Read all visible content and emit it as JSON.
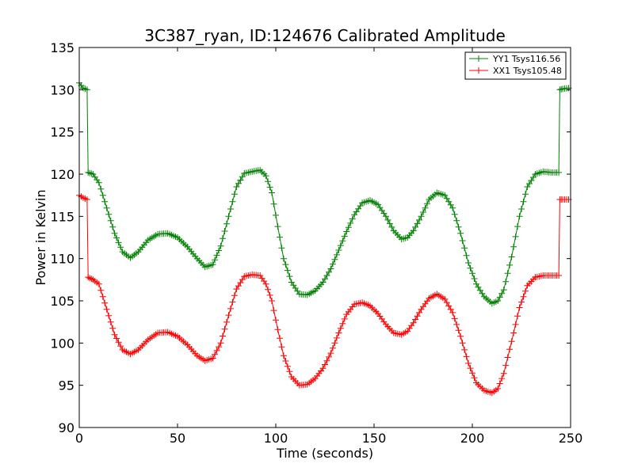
{
  "chart_data": {
    "type": "line",
    "title": "3C387_ryan, ID:124676 Calibrated Amplitude",
    "xlabel": "Time (seconds)",
    "ylabel": "Power in Kelvin",
    "xlim": [
      0,
      250
    ],
    "ylim": [
      90,
      135
    ],
    "xticks": [
      0,
      50,
      100,
      150,
      200,
      250
    ],
    "yticks": [
      90,
      95,
      100,
      105,
      110,
      115,
      120,
      125,
      130,
      135
    ],
    "grid": false,
    "legend_position": "top-right",
    "series": [
      {
        "name": "YY1 Tsys116.56",
        "color": "#008000",
        "marker": "+",
        "x": [
          0,
          2,
          4,
          4.5,
          7,
          10,
          14,
          18,
          22,
          26,
          30,
          35,
          40,
          45,
          50,
          55,
          60,
          64,
          68,
          72,
          76,
          80,
          84,
          88,
          92,
          95,
          98,
          101,
          104,
          108,
          112,
          116,
          120,
          124,
          128,
          132,
          136,
          140,
          144,
          148,
          152,
          156,
          160,
          164,
          167,
          170,
          174,
          178,
          182,
          186,
          190,
          194,
          198,
          202,
          206,
          210,
          213,
          216,
          220,
          224,
          228,
          232,
          236,
          240,
          244,
          244.5,
          246,
          249
        ],
        "y": [
          130.8,
          130.2,
          130.0,
          120.2,
          120.0,
          119.0,
          116.0,
          113.0,
          110.8,
          110.1,
          110.8,
          112.2,
          112.9,
          113.0,
          112.5,
          111.4,
          110.0,
          109.0,
          109.3,
          111.5,
          115.0,
          118.5,
          120.1,
          120.3,
          120.5,
          119.8,
          117.8,
          113.8,
          110.0,
          107.2,
          105.8,
          105.7,
          106.2,
          107.2,
          108.8,
          111.0,
          113.2,
          115.2,
          116.6,
          116.9,
          116.4,
          115.0,
          113.3,
          112.3,
          112.5,
          113.3,
          115.0,
          117.0,
          117.8,
          117.5,
          116.0,
          113.0,
          109.5,
          107.0,
          105.5,
          104.7,
          105.0,
          106.3,
          110.2,
          115.0,
          118.5,
          120.0,
          120.3,
          120.2,
          120.2,
          130.0,
          130.1,
          130.2
        ]
      },
      {
        "name": "XX1 Tsys105.48",
        "color": "#ff0000",
        "marker": "+",
        "x": [
          0,
          2,
          4,
          4.5,
          7,
          10,
          14,
          18,
          22,
          26,
          30,
          35,
          40,
          45,
          50,
          55,
          60,
          64,
          68,
          72,
          76,
          80,
          84,
          88,
          92,
          95,
          98,
          101,
          104,
          108,
          112,
          116,
          120,
          124,
          128,
          132,
          136,
          140,
          144,
          148,
          152,
          156,
          160,
          164,
          167,
          170,
          174,
          178,
          182,
          186,
          190,
          194,
          198,
          202,
          206,
          210,
          213,
          216,
          220,
          224,
          228,
          232,
          236,
          240,
          244,
          244.5,
          246,
          249
        ],
        "y": [
          117.5,
          117.2,
          117.0,
          107.8,
          107.5,
          107.0,
          104.0,
          101.0,
          99.2,
          98.7,
          99.2,
          100.4,
          101.2,
          101.3,
          100.8,
          99.8,
          98.5,
          97.9,
          98.2,
          100.0,
          103.3,
          106.4,
          107.9,
          108.1,
          108.0,
          107.0,
          105.0,
          101.6,
          98.5,
          96.0,
          95.0,
          95.1,
          95.8,
          97.0,
          98.8,
          101.2,
          103.4,
          104.6,
          104.8,
          104.4,
          103.5,
          102.2,
          101.2,
          101.0,
          101.4,
          102.4,
          104.0,
          105.3,
          105.8,
          105.2,
          103.6,
          100.8,
          97.6,
          95.3,
          94.4,
          94.1,
          94.6,
          96.4,
          100.2,
          104.2,
          106.8,
          107.8,
          108.0,
          108.0,
          108.0,
          117.0,
          117.0,
          117.0
        ]
      }
    ]
  }
}
